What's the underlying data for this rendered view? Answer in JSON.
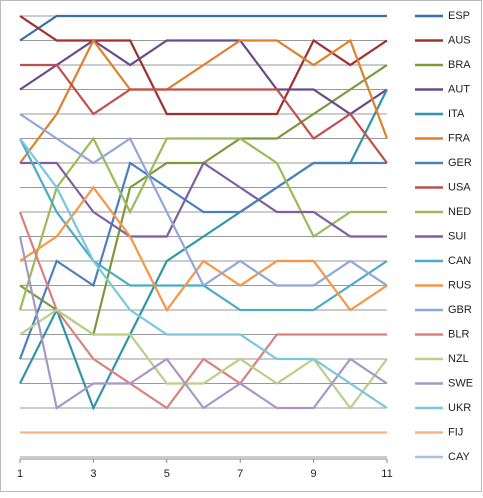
{
  "chart_data": {
    "type": "line",
    "x": [
      1,
      2,
      3,
      4,
      5,
      6,
      7,
      8,
      9,
      10,
      11
    ],
    "xlim": [
      1,
      11
    ],
    "xticks": [
      1,
      3,
      5,
      7,
      9,
      11
    ],
    "ylim": [
      1,
      19
    ],
    "yticks": [
      1,
      2,
      3,
      4,
      5,
      6,
      7,
      8,
      9,
      10,
      11,
      12,
      13,
      14,
      15,
      16,
      17,
      18,
      19
    ],
    "y_inverted": true,
    "grid": true,
    "legend": "right",
    "series": [
      {
        "name": "ESP",
        "color": "#3a6ea5",
        "values": [
          2,
          1,
          1,
          1,
          1,
          1,
          1,
          1,
          1,
          1,
          1
        ]
      },
      {
        "name": "AUS",
        "color": "#a0302d",
        "values": [
          1,
          2,
          2,
          2,
          5,
          5,
          5,
          5,
          2,
          3,
          2
        ]
      },
      {
        "name": "BRA",
        "color": "#7a9a3c",
        "values": [
          12,
          13,
          14,
          8,
          7,
          7,
          6,
          6,
          5,
          4,
          3
        ]
      },
      {
        "name": "AUT",
        "color": "#6a4a8c",
        "values": [
          4,
          3,
          2,
          3,
          2,
          2,
          2,
          4,
          4,
          5,
          4
        ]
      },
      {
        "name": "ITA",
        "color": "#2e96a8",
        "values": [
          16,
          13,
          17,
          14,
          11,
          10,
          9,
          8,
          7,
          7,
          4
        ]
      },
      {
        "name": "FRA",
        "color": "#e0802a",
        "values": [
          7,
          5,
          2,
          4,
          4,
          3,
          2,
          2,
          3,
          2,
          6
        ]
      },
      {
        "name": "GER",
        "color": "#4a80c0",
        "values": [
          15,
          11,
          12,
          7,
          8,
          9,
          9,
          8,
          7,
          7,
          7
        ]
      },
      {
        "name": "USA",
        "color": "#c0504d",
        "values": [
          3,
          3,
          5,
          4,
          4,
          4,
          4,
          4,
          6,
          5,
          7
        ]
      },
      {
        "name": "NED",
        "color": "#9bbb59",
        "values": [
          13,
          8,
          6,
          9,
          6,
          6,
          6,
          7,
          10,
          9,
          9
        ]
      },
      {
        "name": "SUI",
        "color": "#7f5fa0",
        "values": [
          7,
          7,
          9,
          10,
          10,
          7,
          8,
          9,
          9,
          10,
          10
        ]
      },
      {
        "name": "CAN",
        "color": "#4bacc6",
        "values": [
          6,
          9,
          11,
          12,
          12,
          12,
          13,
          13,
          13,
          12,
          11
        ]
      },
      {
        "name": "RUS",
        "color": "#f79646",
        "values": [
          11,
          10,
          8,
          10,
          13,
          11,
          12,
          11,
          11,
          13,
          12
        ]
      },
      {
        "name": "GBR",
        "color": "#8fa8d8",
        "values": [
          5,
          6,
          7,
          6,
          9,
          12,
          11,
          12,
          12,
          11,
          12
        ]
      },
      {
        "name": "BLR",
        "color": "#d98080",
        "values": [
          9,
          13,
          15,
          16,
          17,
          15,
          16,
          14,
          14,
          14,
          14
        ]
      },
      {
        "name": "NZL",
        "color": "#b8d088",
        "values": [
          14,
          13,
          14,
          14,
          16,
          16,
          15,
          16,
          15,
          17,
          15
        ]
      },
      {
        "name": "SWE",
        "color": "#a898c8",
        "values": [
          10,
          17,
          16,
          16,
          15,
          17,
          16,
          17,
          17,
          15,
          16
        ]
      },
      {
        "name": "UKR",
        "color": "#78c8e0",
        "values": [
          6,
          8,
          11,
          13,
          14,
          14,
          14,
          15,
          15,
          16,
          17
        ]
      },
      {
        "name": "FIJ",
        "color": "#f9b380",
        "values": [
          18,
          18,
          18,
          18,
          18,
          18,
          18,
          18,
          18,
          18,
          18
        ]
      },
      {
        "name": "CAY",
        "color": "#a8c0e0",
        "values": [
          null,
          null,
          null,
          null,
          null,
          null,
          null,
          null,
          null,
          null,
          null
        ]
      }
    ]
  }
}
